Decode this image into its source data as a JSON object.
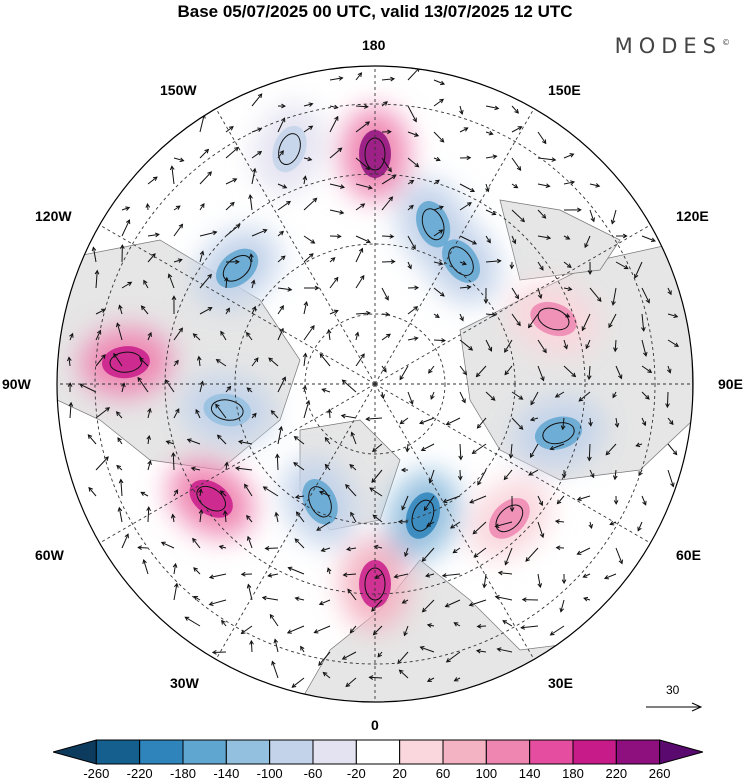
{
  "header": {
    "title": "Base 05/07/2025 00 UTC, valid 13/07/2025 12 UTC",
    "brand": "MODES",
    "brand_mark": "©"
  },
  "map": {
    "projection": "north-polar-stereographic",
    "longitude_labels": {
      "top": "180",
      "top_left": "150W",
      "top_right": "150E",
      "upper_left": "120W",
      "upper_right": "120E",
      "left": "90W",
      "right": "90E",
      "lower_left": "60W",
      "lower_right": "60E",
      "bottom_left": "30W",
      "bottom_right": "30E",
      "bottom": "0"
    },
    "reference_vector": "30",
    "anomaly_centres": [
      {
        "longitude": 180,
        "sign": "positive",
        "level": 220
      },
      {
        "longitude": -95,
        "sign": "positive",
        "level": 200
      },
      {
        "longitude": -55,
        "sign": "positive",
        "level": 200
      },
      {
        "longitude": 0,
        "sign": "positive",
        "level": 180
      },
      {
        "longitude": -160,
        "sign": "negative",
        "level": -100
      },
      {
        "longitude": -130,
        "sign": "negative",
        "level": -160
      },
      {
        "longitude": -80,
        "sign": "negative",
        "level": -140
      },
      {
        "longitude": -25,
        "sign": "negative",
        "level": -180
      },
      {
        "longitude": 20,
        "sign": "negative",
        "level": -220
      },
      {
        "longitude": 75,
        "sign": "negative",
        "level": -160
      },
      {
        "longitude": 145,
        "sign": "negative",
        "level": -180
      },
      {
        "longitude": 160,
        "sign": "negative",
        "level": -160
      },
      {
        "longitude": 110,
        "sign": "positive",
        "level": 100
      },
      {
        "longitude": 45,
        "sign": "positive",
        "level": 100
      }
    ]
  },
  "colorbar": {
    "ticks": [
      "-260",
      "-220",
      "-180",
      "-140",
      "-100",
      "-60",
      "-20",
      "20",
      "60",
      "100",
      "140",
      "180",
      "220",
      "260"
    ],
    "colors": [
      "#0d3b5e",
      "#155f8f",
      "#2e84bb",
      "#5fa6d1",
      "#94c0df",
      "#c3d3ea",
      "#e4e3f1",
      "#ffffff",
      "#f9d7dd",
      "#f4b3c2",
      "#ef86b2",
      "#e54ea0",
      "#c81b8a",
      "#8e0f7e",
      "#5a0a6e"
    ]
  }
}
